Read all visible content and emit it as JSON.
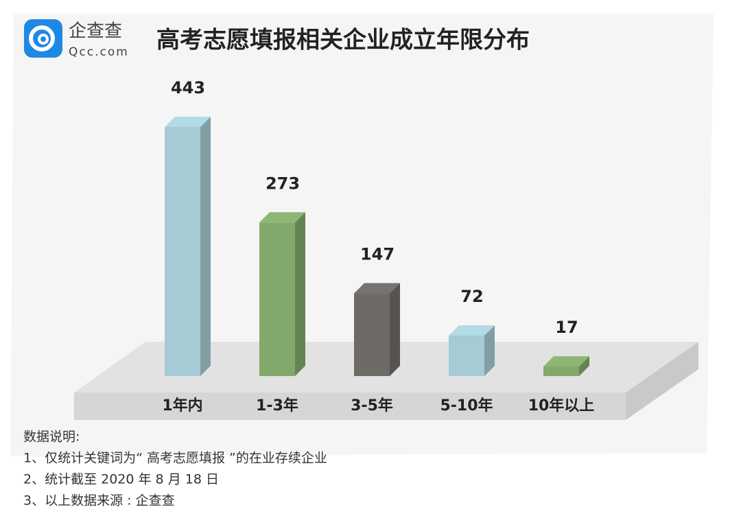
{
  "logo": {
    "name": "企查查",
    "domain": "Qcc.com"
  },
  "chart_data": {
    "type": "bar3d",
    "title": "高考志愿填报相关企业成立年限分布",
    "categories": [
      "1年内",
      "1-3年",
      "3-5年",
      "5-10年",
      "10年以上"
    ],
    "values": [
      443,
      273,
      147,
      72,
      17
    ],
    "colors": [
      "#a6cbd4",
      "#82a96b",
      "#6e6b67",
      "#a6cbd4",
      "#82a96b"
    ]
  },
  "notes": {
    "heading": "数据说明:",
    "items": [
      "1、仅统计关键词为“ 高考志愿填报 ”的在业存续企业",
      "2、统计截至 2020 年 8 月 18 日",
      "3、以上数据来源 : 企查查"
    ]
  }
}
